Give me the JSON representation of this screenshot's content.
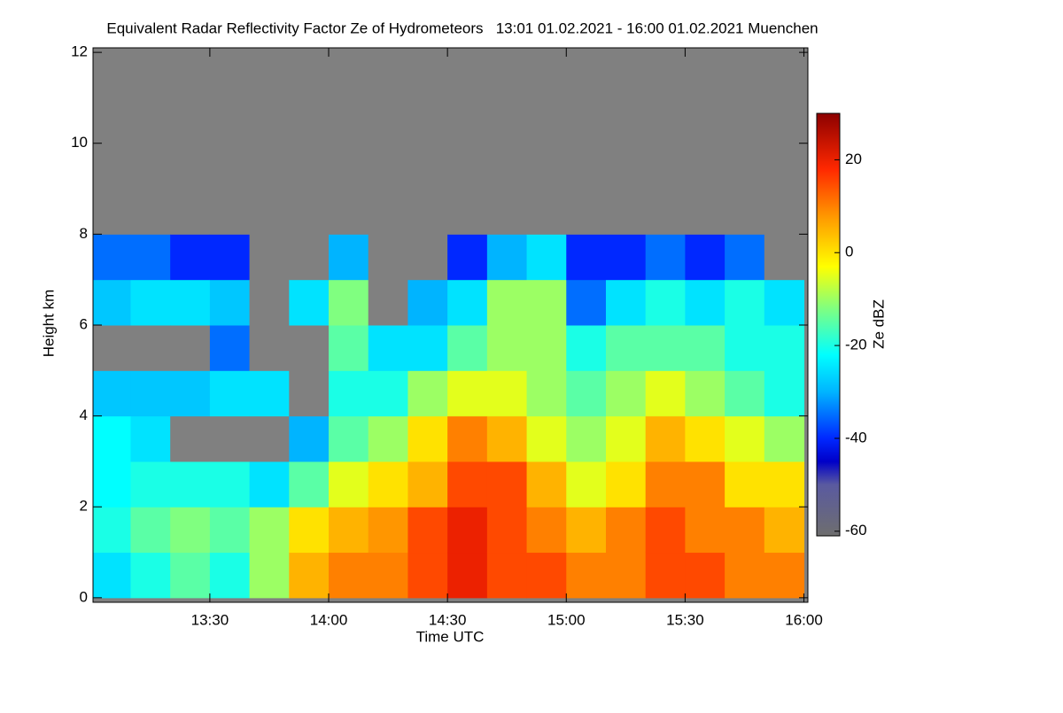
{
  "chart_data": {
    "type": "heatmap",
    "title": "Equivalent Radar Reflectivity Factor Ze of Hydrometeors   13:01 01.02.2021 - 16:00 01.02.2021 Muenchen",
    "x_label": "Time UTC",
    "y_label": "Height km",
    "colorbar_label": "Ze dBZ",
    "x": [
      0,
      10,
      20,
      30,
      40,
      50,
      60,
      70,
      80,
      90,
      100,
      110,
      120,
      130,
      140,
      150,
      160,
      170,
      180
    ],
    "y": [
      0,
      1,
      2,
      3,
      4,
      5,
      6,
      7,
      8,
      9,
      10,
      11,
      12
    ],
    "z": [
      [
        -25,
        -20,
        -22,
        -22,
        -28,
        null,
        -28,
        -35,
        null,
        null,
        null,
        null
      ],
      [
        -20,
        -15,
        -20,
        -25,
        -28,
        null,
        -25,
        -35,
        null,
        null,
        null,
        null
      ],
      [
        -15,
        -12,
        -20,
        null,
        -28,
        null,
        -25,
        -40,
        null,
        null,
        null,
        null
      ],
      [
        -20,
        -15,
        -20,
        null,
        -25,
        -35,
        -28,
        -40,
        null,
        null,
        null,
        null
      ],
      [
        -10,
        -10,
        -25,
        null,
        -25,
        null,
        null,
        null,
        null,
        null,
        null,
        null
      ],
      [
        5,
        0,
        -15,
        -30,
        null,
        null,
        -25,
        null,
        null,
        null,
        null,
        null
      ],
      [
        10,
        5,
        -5,
        -15,
        -20,
        -15,
        -12,
        -30,
        null,
        null,
        null,
        null
      ],
      [
        10,
        8,
        0,
        -10,
        -20,
        -25,
        null,
        null,
        null,
        null,
        null,
        null
      ],
      [
        15,
        15,
        5,
        0,
        -10,
        -25,
        -30,
        null,
        null,
        null,
        null,
        null
      ],
      [
        20,
        20,
        15,
        10,
        -5,
        -15,
        -25,
        -40,
        null,
        null,
        null,
        null
      ],
      [
        15,
        15,
        15,
        5,
        -5,
        -10,
        -10,
        -30,
        null,
        null,
        null,
        null
      ],
      [
        15,
        10,
        5,
        -5,
        -10,
        -10,
        -10,
        -25,
        null,
        null,
        null,
        null
      ],
      [
        10,
        5,
        -5,
        -10,
        -15,
        -20,
        -35,
        -40,
        null,
        null,
        null,
        null
      ],
      [
        10,
        10,
        0,
        -5,
        -10,
        -15,
        -25,
        -40,
        null,
        null,
        null,
        null
      ],
      [
        15,
        15,
        10,
        5,
        -5,
        -15,
        -20,
        -35,
        null,
        null,
        null,
        null
      ],
      [
        15,
        10,
        10,
        0,
        -10,
        -15,
        -25,
        -40,
        null,
        null,
        null,
        null
      ],
      [
        10,
        10,
        0,
        -5,
        -15,
        -20,
        -20,
        -35,
        null,
        null,
        null,
        null
      ],
      [
        10,
        5,
        0,
        -10,
        -20,
        -20,
        -25,
        null,
        null,
        null,
        null,
        null
      ]
    ],
    "xlim": [
      0.5,
      181
    ],
    "xticks": [
      {
        "value": 30,
        "label": "13:30"
      },
      {
        "value": 60,
        "label": "14:00"
      },
      {
        "value": 90,
        "label": "14:30"
      },
      {
        "value": 120,
        "label": "15:00"
      },
      {
        "value": 150,
        "label": "15:30"
      },
      {
        "value": 180,
        "label": "16:00"
      }
    ],
    "ylim": [
      -0.1,
      12.1
    ],
    "yticks": [
      0,
      2,
      4,
      6,
      8,
      10,
      12
    ],
    "zlim": [
      -61,
      30
    ],
    "zticks": [
      -60,
      -40,
      -20,
      0,
      20
    ],
    "nan_color": "#808080",
    "colorscale": [
      [
        -61,
        "#6e6e6e"
      ],
      [
        -50,
        "#5a5aa0"
      ],
      [
        -45,
        "#0000c8"
      ],
      [
        -40,
        "#0028ff"
      ],
      [
        -30,
        "#00b4ff"
      ],
      [
        -22,
        "#00ffff"
      ],
      [
        -12,
        "#80ff80"
      ],
      [
        -3,
        "#ffff00"
      ],
      [
        8,
        "#ff9600"
      ],
      [
        18,
        "#ff2800"
      ],
      [
        30,
        "#8c0000"
      ]
    ]
  }
}
